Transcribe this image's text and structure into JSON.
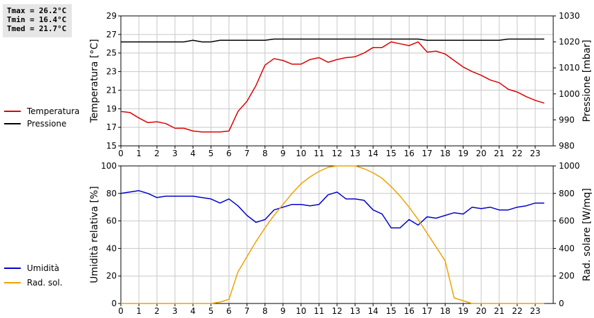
{
  "stats": {
    "tmax": "Tmax = 26.2°C",
    "tmin": "Tmin = 16.4°C",
    "tmed": "Tmed = 21.7°C"
  },
  "chart_data": [
    {
      "type": "line",
      "xlabel": "",
      "ylabel_left": "Temperatura [°C]",
      "ylabel_right": "Pressione [mbar]",
      "xlim": [
        0,
        24
      ],
      "xticks": [
        0,
        1,
        2,
        3,
        4,
        5,
        6,
        7,
        8,
        9,
        10,
        11,
        12,
        13,
        14,
        15,
        16,
        17,
        18,
        19,
        20,
        21,
        22,
        23
      ],
      "ylim_left": [
        15,
        29
      ],
      "yticks_left": [
        15,
        17,
        19,
        21,
        23,
        25,
        27,
        29
      ],
      "ylim_right": [
        980,
        1030
      ],
      "yticks_right": [
        980,
        990,
        1000,
        1010,
        1020,
        1030
      ],
      "grid": true,
      "legend_position": "left",
      "series": [
        {
          "name": "Temperatura",
          "axis": "left",
          "color": "#dd0000",
          "x": [
            0,
            0.5,
            1,
            1.5,
            2,
            2.5,
            3,
            3.5,
            4,
            4.5,
            5,
            5.5,
            6,
            6.5,
            7,
            7.5,
            8,
            8.5,
            9,
            9.5,
            10,
            10.5,
            11,
            11.5,
            12,
            12.5,
            13,
            13.5,
            14,
            14.5,
            15,
            15.5,
            16,
            16.5,
            17,
            17.5,
            18,
            18.5,
            19,
            19.5,
            20,
            20.5,
            21,
            21.5,
            22,
            22.5,
            23,
            23.5
          ],
          "y": [
            18.7,
            18.6,
            18.0,
            17.5,
            17.6,
            17.4,
            16.9,
            16.9,
            16.6,
            16.5,
            16.5,
            16.5,
            16.6,
            18.7,
            19.8,
            21.5,
            23.7,
            24.4,
            24.2,
            23.8,
            23.8,
            24.3,
            24.5,
            24.0,
            24.3,
            24.5,
            24.6,
            25.0,
            25.6,
            25.6,
            26.2,
            26.0,
            25.8,
            26.2,
            25.1,
            25.2,
            24.9,
            24.2,
            23.5,
            23.0,
            22.6,
            22.1,
            21.8,
            21.1,
            20.8,
            20.3,
            19.9,
            19.6
          ]
        },
        {
          "name": "Pressione",
          "axis": "right",
          "color": "#000000",
          "x": [
            0,
            3.5,
            4,
            4.5,
            5,
            5.5,
            6,
            8,
            8.5,
            16.5,
            17,
            21,
            21.5,
            23.5
          ],
          "y": [
            1020,
            1020,
            1020.6,
            1020,
            1020,
            1020.6,
            1020.6,
            1020.6,
            1021.1,
            1021.1,
            1020.6,
            1020.6,
            1021.1,
            1021.1
          ]
        }
      ]
    },
    {
      "type": "line",
      "xlabel": "",
      "ylabel_left": "Umidità relativa [%]",
      "ylabel_right": "Rad. solare [W/mq]",
      "xlim": [
        0,
        24
      ],
      "xticks": [
        0,
        1,
        2,
        3,
        4,
        5,
        6,
        7,
        8,
        9,
        10,
        11,
        12,
        13,
        14,
        15,
        16,
        17,
        18,
        19,
        20,
        21,
        22,
        23
      ],
      "ylim_left": [
        0,
        100
      ],
      "yticks_left": [
        0,
        20,
        40,
        60,
        80,
        100
      ],
      "ylim_right": [
        0,
        1000
      ],
      "yticks_right": [
        0,
        200,
        400,
        600,
        800,
        1000
      ],
      "grid": true,
      "legend_position": "left",
      "series": [
        {
          "name": "Umidità",
          "axis": "left",
          "color": "#0000cc",
          "x": [
            0,
            0.5,
            1,
            1.5,
            2,
            2.5,
            3,
            3.5,
            4,
            4.5,
            5,
            5.5,
            6,
            6.5,
            7,
            7.5,
            8,
            8.5,
            9,
            9.5,
            10,
            10.5,
            11,
            11.5,
            12,
            12.5,
            13,
            13.5,
            14,
            14.5,
            15,
            15.5,
            16,
            16.5,
            17,
            17.5,
            18,
            18.5,
            19,
            19.5,
            20,
            20.5,
            21,
            21.5,
            22,
            22.5,
            23,
            23.5
          ],
          "y": [
            80,
            81,
            82,
            80,
            77,
            78,
            78,
            78,
            78,
            77,
            76,
            73,
            76,
            71,
            64,
            59,
            61,
            68,
            70,
            72,
            72,
            71,
            72,
            79,
            81,
            76,
            76,
            75,
            68,
            65,
            55,
            55,
            61,
            57,
            63,
            62,
            64,
            66,
            65,
            70,
            69,
            70,
            68,
            68,
            70,
            71,
            73,
            73
          ]
        },
        {
          "name": "Rad. sol.",
          "axis": "right",
          "color": "#f0a000",
          "x": [
            0,
            0.5,
            1,
            1.5,
            2,
            2.5,
            3,
            3.5,
            4,
            4.5,
            5,
            5.5,
            6,
            6.5,
            7,
            7.5,
            8,
            8.5,
            9,
            9.5,
            10,
            10.5,
            11,
            11.5,
            12,
            12.5,
            13,
            13.5,
            14,
            14.5,
            15,
            15.5,
            16,
            16.5,
            17,
            17.5,
            18,
            18.5,
            19,
            19.5,
            20,
            20.5,
            21,
            21.5,
            22,
            22.5,
            23,
            23.5
          ],
          "y": [
            0,
            0,
            0,
            0,
            0,
            0,
            0,
            0,
            0,
            0,
            0,
            10,
            30,
            230,
            340,
            450,
            550,
            640,
            720,
            800,
            870,
            920,
            960,
            990,
            1000,
            1000,
            1000,
            980,
            950,
            910,
            850,
            780,
            700,
            610,
            510,
            410,
            310,
            40,
            20,
            0,
            0,
            0,
            0,
            0,
            0,
            0,
            0,
            0
          ]
        }
      ]
    }
  ]
}
